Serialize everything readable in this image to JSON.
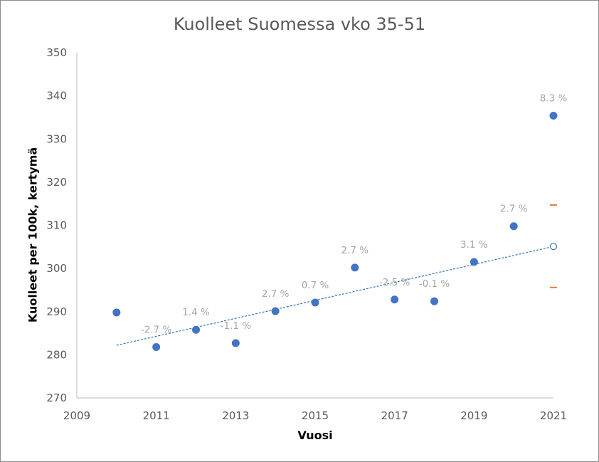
{
  "chart_data": {
    "type": "scatter",
    "title": "Kuolleet Suomessa vko 35-51",
    "xlabel": "Vuosi",
    "ylabel": "Kuolleet per 100k, kertymä",
    "xlim": [
      2009,
      2021
    ],
    "ylim": [
      270,
      350
    ],
    "xticks": [
      2009,
      2011,
      2013,
      2015,
      2017,
      2019,
      2021
    ],
    "yticks": [
      270,
      280,
      290,
      300,
      310,
      320,
      330,
      340,
      350
    ],
    "points": [
      {
        "x": 2010,
        "y": 289.8,
        "label": ""
      },
      {
        "x": 2011,
        "y": 281.8,
        "label": "-2.7 %"
      },
      {
        "x": 2012,
        "y": 285.8,
        "label": "1.4 %"
      },
      {
        "x": 2013,
        "y": 282.7,
        "label": "-1.1 %"
      },
      {
        "x": 2014,
        "y": 290.1,
        "label": "2.7 %"
      },
      {
        "x": 2015,
        "y": 292.1,
        "label": "0.7 %"
      },
      {
        "x": 2016,
        "y": 300.2,
        "label": "2.7 %"
      },
      {
        "x": 2017,
        "y": 292.8,
        "label": "-2.5 %"
      },
      {
        "x": 2018,
        "y": 292.4,
        "label": "-0.1 %"
      },
      {
        "x": 2019,
        "y": 301.5,
        "label": "3.1 %"
      },
      {
        "x": 2020,
        "y": 309.8,
        "label": "2.7 %"
      },
      {
        "x": 2021,
        "y": 335.4,
        "label": "8.3 %"
      }
    ],
    "trendline": {
      "x": [
        2010,
        2021
      ],
      "y": [
        282.2,
        305.1
      ]
    },
    "forecast": {
      "x": 2021,
      "y": 305.1
    },
    "forecast_bounds": [
      {
        "x": 2021,
        "y": 314.7
      },
      {
        "x": 2021,
        "y": 295.6
      }
    ],
    "grid": false,
    "colors": {
      "points": "#4472c4",
      "trendline": "#2e75b6",
      "bounds": "#ed7d31",
      "labels": "#a6a6a6"
    }
  }
}
